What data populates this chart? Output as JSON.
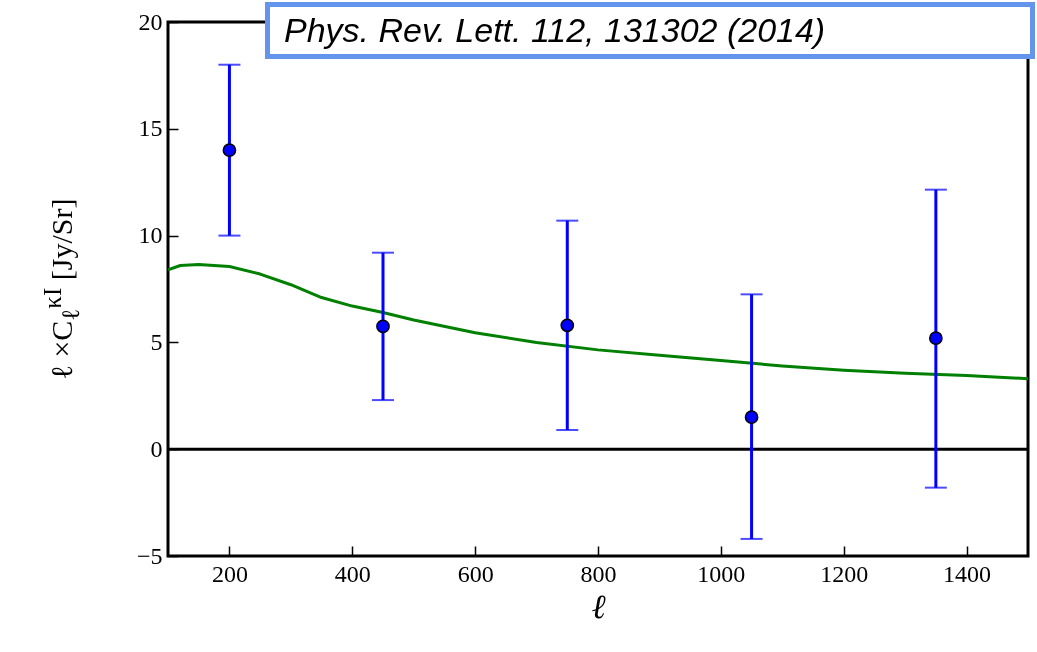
{
  "chart_data": {
    "type": "scatter",
    "xlabel": "ℓ",
    "ylabel": "ℓ ×C$_{ℓ}$$^{κI}$ [Jy/Sr]",
    "annotations": [
      "Phys. Rev. Lett. 112, 131302 (2014)"
    ],
    "xlim": [
      100,
      1500
    ],
    "xticks": [
      200,
      400,
      600,
      800,
      1000,
      1200,
      1400
    ],
    "ylim": [
      -5,
      20
    ],
    "yticks": [
      {
        "value": -5,
        "label": "−5"
      },
      0,
      5,
      10,
      15,
      20
    ],
    "ref_lines": [
      {
        "axis": "y",
        "value": 0,
        "color": "#000000"
      }
    ],
    "series": [
      {
        "type": "line",
        "color": "#008000",
        "x": [
          100,
          120,
          150,
          200,
          250,
          300,
          350,
          400,
          450,
          500,
          600,
          700,
          800,
          900,
          1000,
          1100,
          1200,
          1300,
          1400,
          1500
        ],
        "values": [
          8.4,
          8.6,
          8.65,
          8.55,
          8.2,
          7.7,
          7.1,
          6.7,
          6.4,
          6.05,
          5.45,
          5.0,
          4.65,
          4.4,
          4.15,
          3.9,
          3.7,
          3.55,
          3.45,
          3.3
        ]
      },
      {
        "color": "#0000ff",
        "marker": "circle",
        "x": [
          200,
          450,
          750,
          1050,
          1350
        ],
        "values": [
          14,
          5.75,
          5.8,
          1.5,
          5.2
        ],
        "errors": [
          [
            10,
            18
          ],
          [
            2.3,
            9.2
          ],
          [
            0.9,
            10.7
          ],
          [
            -4.2,
            7.25
          ],
          [
            -1.8,
            12.15
          ]
        ]
      }
    ]
  }
}
